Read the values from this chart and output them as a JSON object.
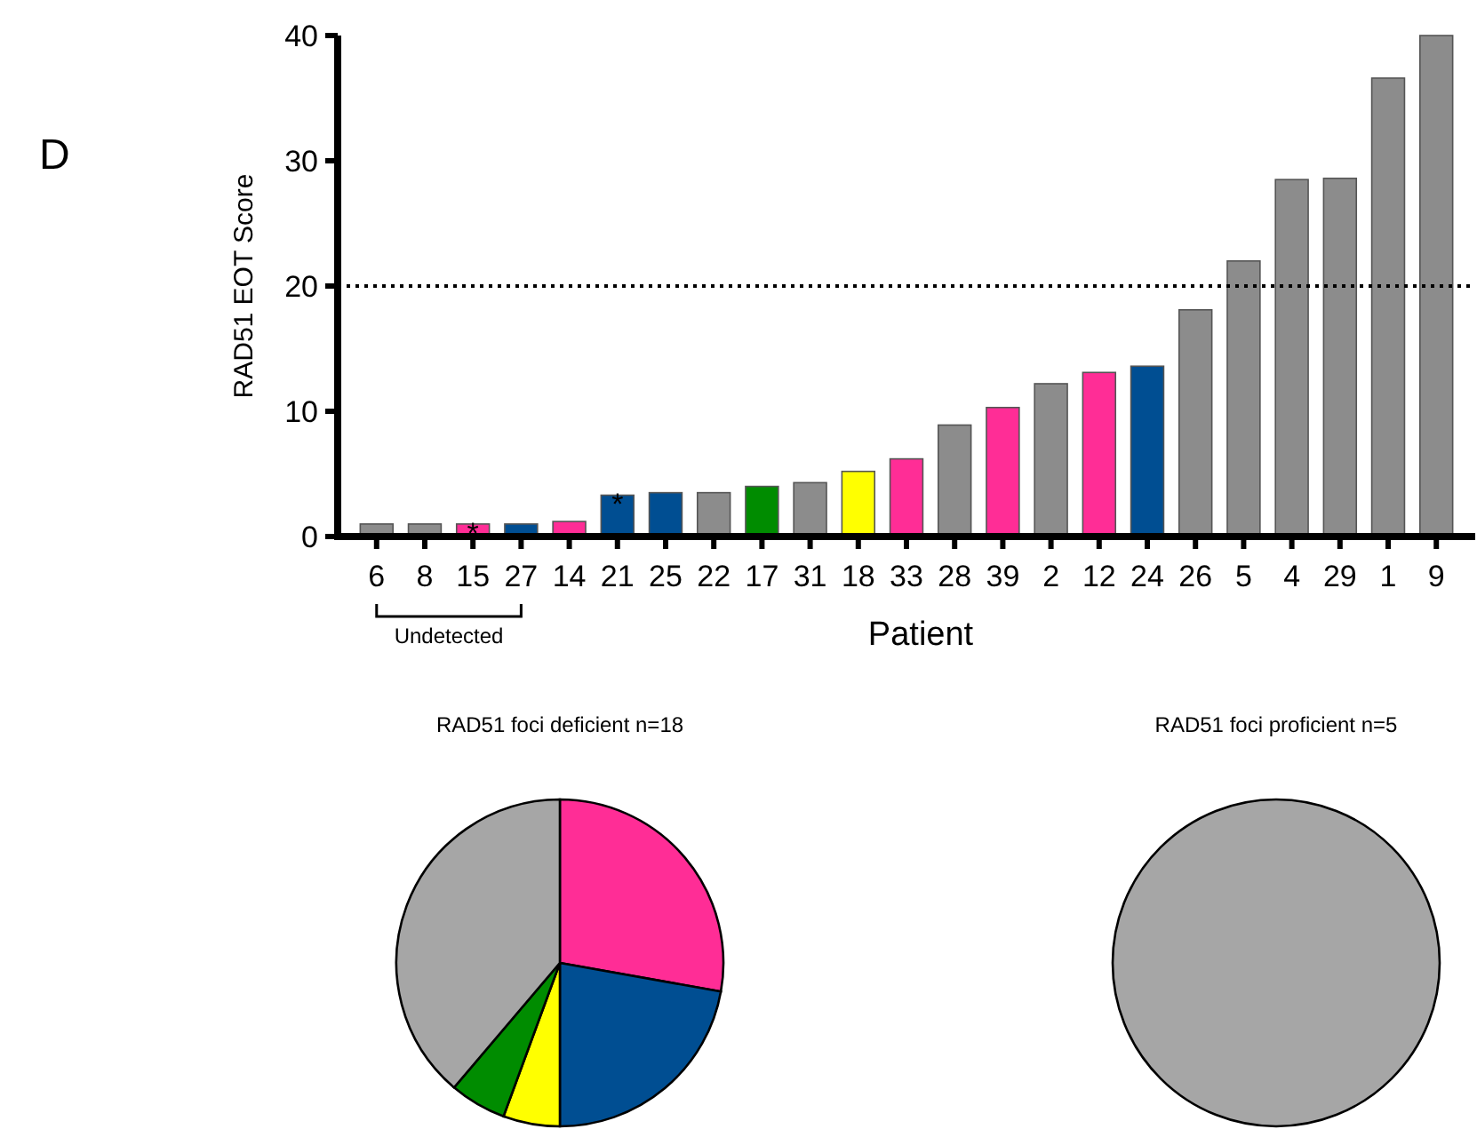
{
  "chart_data": [
    {
      "type": "bar",
      "ylabel": "RAD51 EOT Score",
      "xlabel": "Patient",
      "categories": [
        "6",
        "8",
        "15",
        "27",
        "14",
        "21",
        "25",
        "22",
        "17",
        "31",
        "18",
        "33",
        "28",
        "39",
        "2",
        "12",
        "24",
        "26",
        "5",
        "4",
        "29",
        "1",
        "9"
      ],
      "values": [
        1,
        1,
        1,
        1,
        1.2,
        3.3,
        3.5,
        3.5,
        4,
        4.3,
        5.2,
        6.2,
        8.9,
        10.3,
        12.2,
        13.1,
        13.6,
        18.1,
        22,
        28.5,
        28.6,
        36.6,
        40
      ],
      "colors": [
        "#8c8c8c",
        "#8c8c8c",
        "#ff2d96",
        "#004e92",
        "#ff2d96",
        "#004e92",
        "#004e92",
        "#8c8c8c",
        "#008c00",
        "#8c8c8c",
        "#ffff00",
        "#ff2d96",
        "#8c8c8c",
        "#ff2d96",
        "#8c8c8c",
        "#ff2d96",
        "#004e92",
        "#8c8c8c",
        "#8c8c8c",
        "#8c8c8c",
        "#8c8c8c",
        "#8c8c8c",
        "#8c8c8c"
      ],
      "ylim": [
        0,
        40
      ],
      "yticks": [
        0,
        10,
        20,
        30,
        40
      ],
      "ref_lines": [
        {
          "axis": "y",
          "value": 20,
          "line_style": "dotted"
        }
      ],
      "annotations": [
        "D",
        "Undetected",
        {
          "text": "*",
          "x": "15",
          "y": 1
        },
        {
          "text": "*",
          "x": "21",
          "y": 3.3
        }
      ]
    },
    {
      "type": "pie",
      "title": "RAD51 foci deficient n=18",
      "categories": [
        null,
        null,
        null,
        null,
        null
      ],
      "values": [
        27.8,
        22.2,
        5.6,
        5.6,
        38.8
      ],
      "colors": [
        "#ff2d96",
        "#004e92",
        "#ffff00",
        "#008c00",
        "#a6a6a6"
      ]
    },
    {
      "type": "pie",
      "title": "RAD51 foci proficient n=5",
      "categories": [
        null
      ],
      "values": [
        100
      ],
      "colors": [
        "#a6a6a6"
      ]
    }
  ]
}
